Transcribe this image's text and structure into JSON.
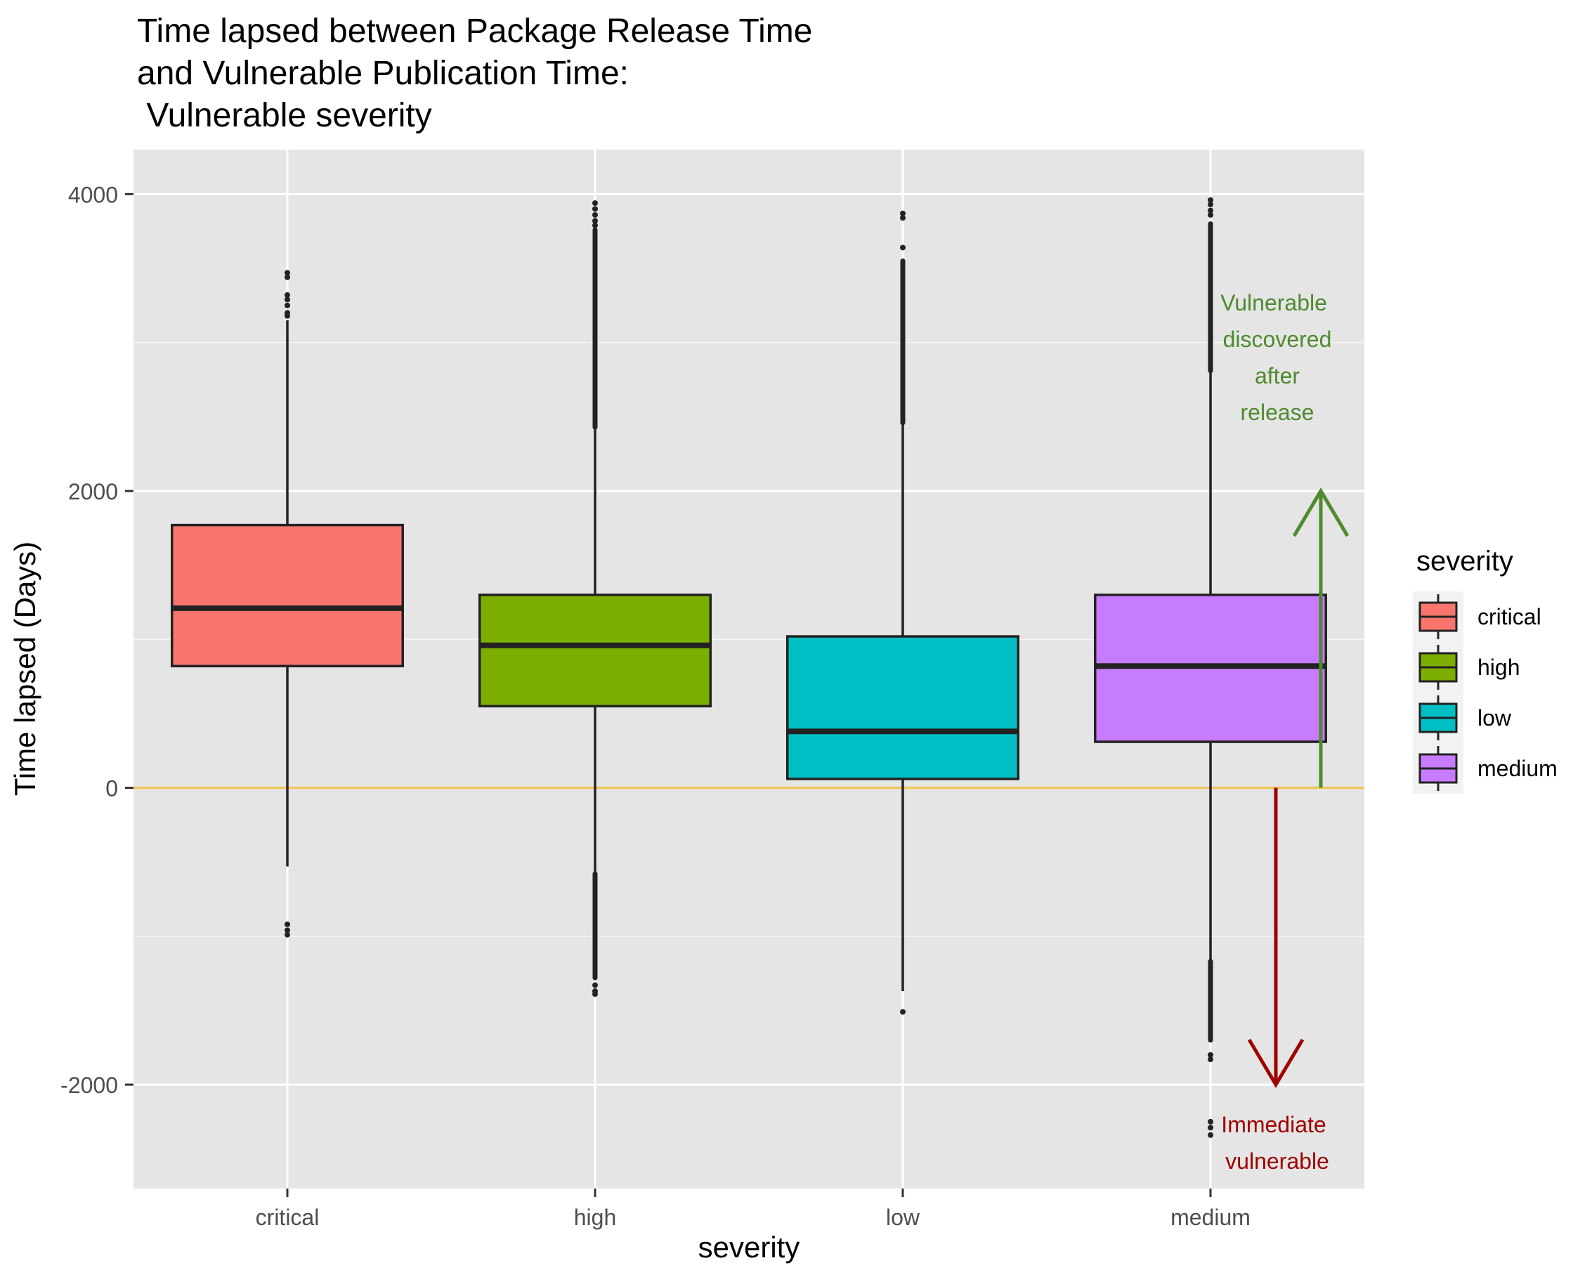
{
  "chart_data": {
    "type": "boxplot",
    "title_lines": [
      "Time lapsed between Package Release Time",
      "and Vulnerable Publication Time:",
      " Vulnerable severity"
    ],
    "xlabel": "severity",
    "ylabel": "Time lapsed (Days)",
    "ylim": [
      -2700,
      4300
    ],
    "yticks": [
      -2000,
      0,
      2000,
      4000
    ],
    "ytick_labels": [
      "-2000",
      "0",
      "2000",
      "4000"
    ],
    "categories": [
      "critical",
      "high",
      "low",
      "medium"
    ],
    "boxes": [
      {
        "name": "critical",
        "color": "#F8766D",
        "q1": 820,
        "median": 1210,
        "q3": 1770,
        "whisker_low": -530,
        "whisker_high": 3150,
        "outliers": [
          3470,
          3440,
          3320,
          3290,
          3250,
          3200,
          3180,
          -920,
          -960,
          -990
        ]
      },
      {
        "name": "high",
        "color": "#7CAE00",
        "q1": 550,
        "median": 960,
        "q3": 1300,
        "whisker_low": -580,
        "whisker_high": 2430,
        "outlier_ranges": [
          [
            2430,
            3760
          ],
          [
            -1000,
            -580
          ],
          [
            -1280,
            -1000
          ]
        ],
        "outliers": [
          3940,
          3900,
          3860,
          3820,
          3790,
          -1330,
          -1370,
          -1390
        ]
      },
      {
        "name": "low",
        "color": "#00BFC4",
        "q1": 60,
        "median": 380,
        "q3": 1020,
        "whisker_low": -1370,
        "whisker_high": 2460,
        "outlier_ranges": [
          [
            2460,
            3000
          ],
          [
            3000,
            3550
          ]
        ],
        "outliers": [
          3870,
          3840,
          3640,
          -1510
        ]
      },
      {
        "name": "medium",
        "color": "#C77CFF",
        "q1": 310,
        "median": 820,
        "q3": 1300,
        "whisker_low": -1170,
        "whisker_high": 2810,
        "outlier_ranges": [
          [
            2810,
            3800
          ],
          [
            -1700,
            -1170
          ]
        ],
        "outliers": [
          3960,
          3930,
          3890,
          3860,
          -1800,
          -1830,
          -2250,
          -2290,
          -2340
        ]
      }
    ],
    "reference_line": {
      "value": 0,
      "color": "#F0C75E"
    },
    "annotations": {
      "up_arrow": {
        "from": 0,
        "to": 2000,
        "color": "#4E8A2E",
        "lines": [
          "Vulnerable",
          "discovered",
          "after",
          "release"
        ]
      },
      "down_arrow": {
        "from": 0,
        "to": -2000,
        "color": "#A00000",
        "lines": [
          "Immediate",
          "vulnerable"
        ]
      }
    },
    "legend": {
      "title": "severity",
      "position": "right",
      "entries": [
        {
          "label": "critical",
          "color": "#F8766D"
        },
        {
          "label": "high",
          "color": "#7CAE00"
        },
        {
          "label": "low",
          "color": "#00BFC4"
        },
        {
          "label": "medium",
          "color": "#C77CFF"
        }
      ]
    },
    "grid": true
  }
}
